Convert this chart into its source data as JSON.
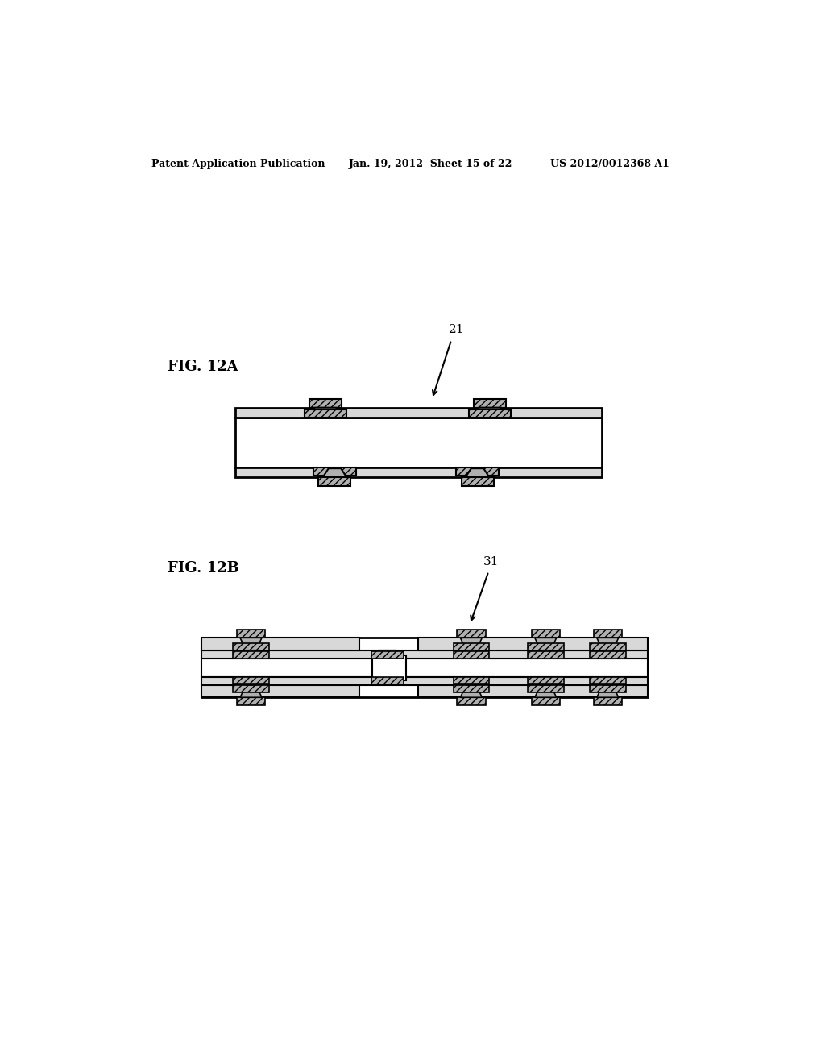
{
  "background_color": "#ffffff",
  "header_left": "Patent Application Publication",
  "header_mid": "Jan. 19, 2012  Sheet 15 of 22",
  "header_right": "US 2012/0012368 A1",
  "fig12a_label": "FIG. 12A",
  "fig12b_label": "FIG. 12B",
  "label_21": "21",
  "label_31": "31",
  "black": "#000000",
  "white": "#ffffff",
  "gray_pad": "#b0b0b0",
  "gray_layer": "#d8d8d8",
  "gray_dark": "#909090"
}
